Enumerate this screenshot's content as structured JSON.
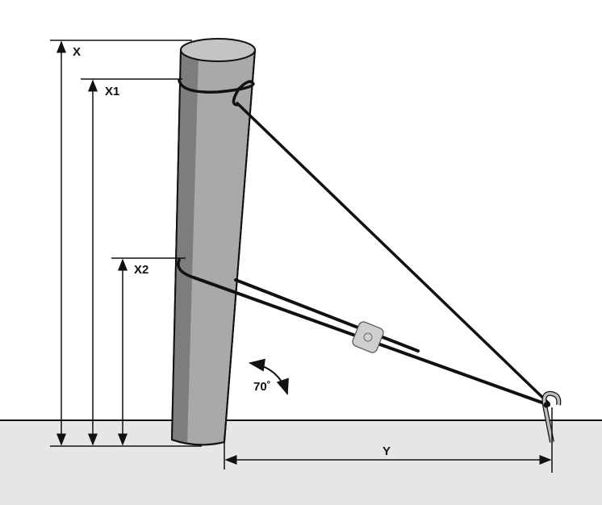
{
  "labels": {
    "x": "X",
    "x1": "X1",
    "x2": "X2",
    "y": "Y",
    "angle": "70˚"
  },
  "colors": {
    "ground": "#e6e6e6",
    "pole_dark": "#7d7d7d",
    "pole_light": "#a9a9a9",
    "pole_top": "#c4c4c4",
    "line": "#111111"
  }
}
